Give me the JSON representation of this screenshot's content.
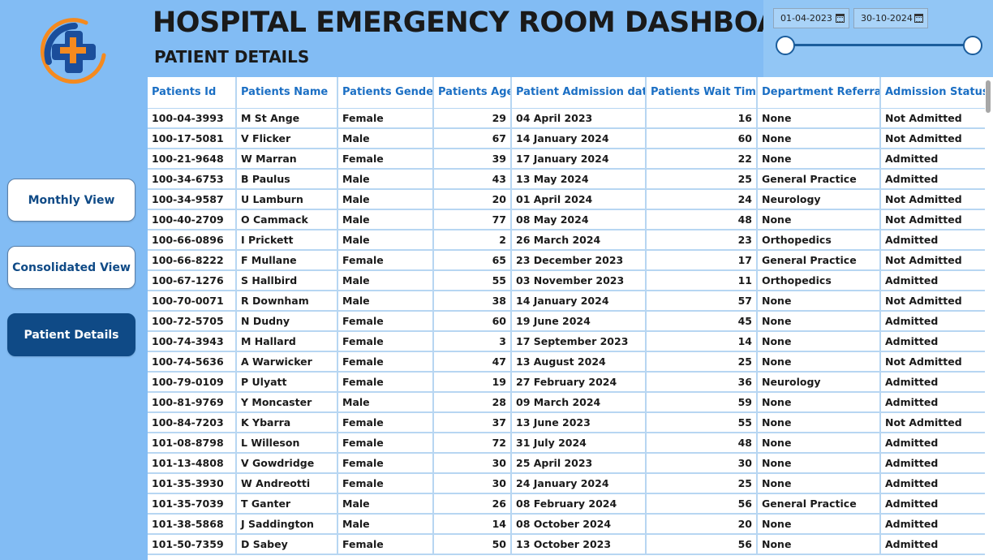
{
  "header": {
    "title": "HOSPITAL EMERGENCY ROOM DASHBOARD",
    "subtitle": "PATIENT DETAILS"
  },
  "logo": {
    "icon": "medical-cross-icon",
    "colors": {
      "cross": "#f58a1f",
      "ring": "#1b4e9b"
    }
  },
  "nav": {
    "monthly": "Monthly View",
    "consolidated": "Consolidated View",
    "patient": "Patient Details",
    "active": "Patient Details"
  },
  "date_filter": {
    "start": "01-04-2023",
    "end": "30-10-2024"
  },
  "colors": {
    "background": "#82bcf4",
    "accent": "#0f4a86",
    "header_text": "#1b6fc4"
  },
  "table": {
    "columns": [
      "Patients Id",
      "Patients Name",
      "Patients Gender",
      "Patients Age",
      "Patient Admission date",
      "Patients Wait Time",
      "Department Referral",
      "Admission Status"
    ],
    "rows": [
      [
        "100-04-3993",
        "M St Ange",
        "Female",
        "29",
        "04 April 2023",
        "16",
        "None",
        "Not Admitted"
      ],
      [
        "100-17-5081",
        "V Flicker",
        "Male",
        "67",
        "14 January 2024",
        "60",
        "None",
        "Not Admitted"
      ],
      [
        "100-21-9648",
        "W Marran",
        "Female",
        "39",
        "17 January 2024",
        "22",
        "None",
        "Admitted"
      ],
      [
        "100-34-6753",
        "B Paulus",
        "Male",
        "43",
        "13 May 2024",
        "25",
        "General Practice",
        "Admitted"
      ],
      [
        "100-34-9587",
        "U Lamburn",
        "Male",
        "20",
        "01 April 2024",
        "24",
        "Neurology",
        "Not Admitted"
      ],
      [
        "100-40-2709",
        "O Cammack",
        "Male",
        "77",
        "08 May 2024",
        "48",
        "None",
        "Not Admitted"
      ],
      [
        "100-66-0896",
        "I Prickett",
        "Male",
        "2",
        "26 March 2024",
        "23",
        "Orthopedics",
        "Admitted"
      ],
      [
        "100-66-8222",
        "F Mullane",
        "Female",
        "65",
        "23 December 2023",
        "17",
        "General Practice",
        "Not Admitted"
      ],
      [
        "100-67-1276",
        "S Hallbird",
        "Male",
        "55",
        "03 November 2023",
        "11",
        "Orthopedics",
        "Admitted"
      ],
      [
        "100-70-0071",
        "R Downham",
        "Male",
        "38",
        "14 January 2024",
        "57",
        "None",
        "Not Admitted"
      ],
      [
        "100-72-5705",
        "N Dudny",
        "Female",
        "60",
        "19 June 2024",
        "45",
        "None",
        "Admitted"
      ],
      [
        "100-74-3943",
        "M Hallard",
        "Female",
        "3",
        "17 September 2023",
        "14",
        "None",
        "Admitted"
      ],
      [
        "100-74-5636",
        "A Warwicker",
        "Female",
        "47",
        "13 August 2024",
        "25",
        "None",
        "Not Admitted"
      ],
      [
        "100-79-0109",
        "P Ulyatt",
        "Female",
        "19",
        "27 February 2024",
        "36",
        "Neurology",
        "Admitted"
      ],
      [
        "100-81-9769",
        "Y Moncaster",
        "Male",
        "28",
        "09 March 2024",
        "59",
        "None",
        "Admitted"
      ],
      [
        "100-84-7203",
        "K Ybarra",
        "Female",
        "37",
        "13 June 2023",
        "55",
        "None",
        "Not Admitted"
      ],
      [
        "101-08-8798",
        "L Willeson",
        "Female",
        "72",
        "31 July 2024",
        "48",
        "None",
        "Admitted"
      ],
      [
        "101-13-4808",
        "V Gowdridge",
        "Female",
        "30",
        "25 April 2023",
        "30",
        "None",
        "Admitted"
      ],
      [
        "101-35-3930",
        "W Andreotti",
        "Female",
        "30",
        "24 January 2024",
        "25",
        "None",
        "Admitted"
      ],
      [
        "101-35-7039",
        "T Ganter",
        "Male",
        "26",
        "08 February 2024",
        "56",
        "General Practice",
        "Admitted"
      ],
      [
        "101-38-5868",
        "J Saddington",
        "Male",
        "14",
        "08 October 2024",
        "20",
        "None",
        "Admitted"
      ],
      [
        "101-50-7359",
        "D Sabey",
        "Female",
        "50",
        "13 October 2023",
        "56",
        "None",
        "Admitted"
      ]
    ]
  }
}
